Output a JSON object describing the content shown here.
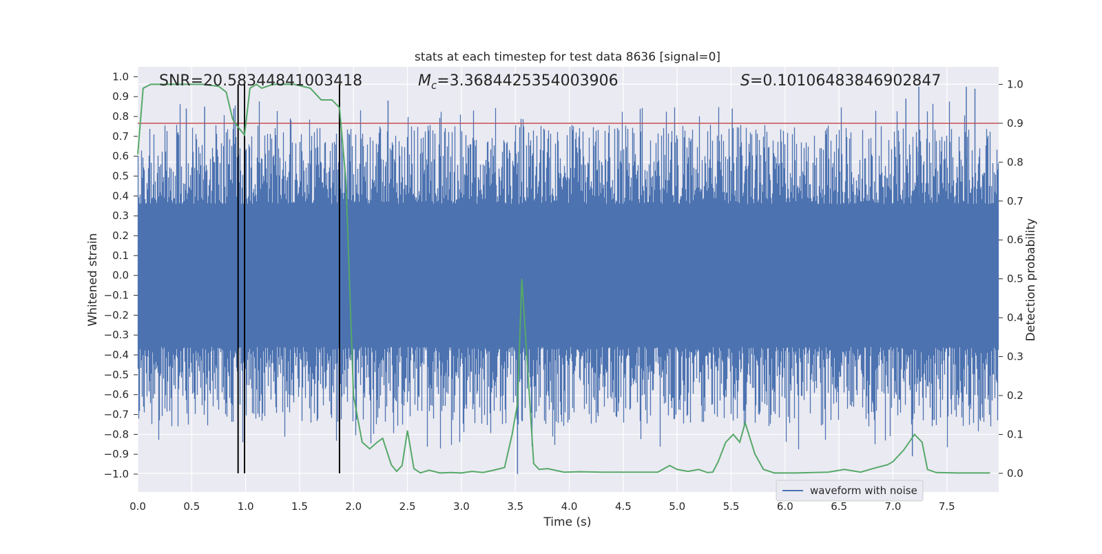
{
  "chart_data": {
    "type": "line",
    "title": "stats at each timestep for test data 8636 [signal=0]",
    "xlabel": "Time (s)",
    "ylabel_left": "Whitened strain",
    "ylabel_right": "Detection probability",
    "xlim": [
      0.0,
      7.98
    ],
    "ylim_left": [
      -1.09,
      1.05
    ],
    "ylim_right": [
      -0.048,
      1.045
    ],
    "x_ticks": [
      "0.0",
      "0.5",
      "1.0",
      "1.5",
      "2.0",
      "2.5",
      "3.0",
      "3.5",
      "4.0",
      "4.5",
      "5.0",
      "5.5",
      "6.0",
      "6.5",
      "7.0",
      "7.5"
    ],
    "x_tick_values": [
      0,
      0.5,
      1,
      1.5,
      2,
      2.5,
      3,
      3.5,
      4,
      4.5,
      5,
      5.5,
      6,
      6.5,
      7,
      7.5
    ],
    "y_left_ticks": [
      "1.0",
      "0.9",
      "0.8",
      "0.7",
      "0.6",
      "0.5",
      "0.4",
      "0.3",
      "0.2",
      "0.1",
      "0.0",
      "−0.1",
      "−0.2",
      "−0.3",
      "−0.4",
      "−0.5",
      "−0.6",
      "−0.7",
      "−0.8",
      "−0.9",
      "−1.0"
    ],
    "y_left_tick_values": [
      1.0,
      0.9,
      0.8,
      0.7,
      0.6,
      0.5,
      0.4,
      0.3,
      0.2,
      0.1,
      0.0,
      -0.1,
      -0.2,
      -0.3,
      -0.4,
      -0.5,
      -0.6,
      -0.7,
      -0.8,
      -0.9,
      -1.0
    ],
    "y_right_ticks": [
      "1.0",
      "0.9",
      "0.8",
      "0.7",
      "0.6",
      "0.5",
      "0.4",
      "0.3",
      "0.2",
      "0.1",
      "0.0"
    ],
    "y_right_tick_values": [
      1.0,
      0.9,
      0.8,
      0.7,
      0.6,
      0.5,
      0.4,
      0.3,
      0.2,
      0.1,
      0.0
    ],
    "annotations": {
      "snr": "SNR=20.58344841003418",
      "mc_symbol": "M",
      "mc_sub": "c",
      "mc_value": "=3.3684425354003906",
      "s_symbol": "S",
      "s_value": "=0.10106483846902847"
    },
    "threshold": {
      "value": 0.9,
      "axis": "right",
      "color": "#c44e52"
    },
    "vertical_lines": [
      0.93,
      0.99,
      1.87
    ],
    "series": [
      {
        "name": "waveform with noise",
        "axis": "left",
        "color": "#4c72b0",
        "kind": "noise-band",
        "envelope_max": 0.97,
        "envelope_min": -1.0,
        "notable_spikes": [
          {
            "x": 0.45,
            "y": 0.84
          },
          {
            "x": 0.62,
            "y": 0.85
          },
          {
            "x": 0.89,
            "y": 0.84
          },
          {
            "x": 2.32,
            "y": 0.88
          },
          {
            "x": 3.52,
            "y": -1.0
          },
          {
            "x": 5.51,
            "y": 0.84
          },
          {
            "x": 7.12,
            "y": 0.89
          },
          {
            "x": 7.18,
            "y": -0.91
          },
          {
            "x": 7.24,
            "y": 0.95
          },
          {
            "x": 7.68,
            "y": 0.95
          },
          {
            "x": 7.76,
            "y": 0.94
          }
        ]
      },
      {
        "name": "detection probability",
        "axis": "right",
        "color": "#55a868",
        "x": [
          0.0,
          0.05,
          0.12,
          0.2,
          0.4,
          0.6,
          0.75,
          0.82,
          0.88,
          0.93,
          0.99,
          1.04,
          1.1,
          1.15,
          1.25,
          1.45,
          1.6,
          1.7,
          1.8,
          1.87,
          1.93,
          2.0,
          2.08,
          2.15,
          2.22,
          2.27,
          2.35,
          2.4,
          2.45,
          2.5,
          2.56,
          2.62,
          2.7,
          2.8,
          2.9,
          3.0,
          3.1,
          3.2,
          3.3,
          3.4,
          3.47,
          3.52,
          3.56,
          3.6,
          3.67,
          3.72,
          3.8,
          3.95,
          4.1,
          4.3,
          4.6,
          4.82,
          4.93,
          5.0,
          5.1,
          5.2,
          5.28,
          5.33,
          5.38,
          5.45,
          5.52,
          5.58,
          5.63,
          5.72,
          5.8,
          5.9,
          6.1,
          6.4,
          6.55,
          6.7,
          6.85,
          6.95,
          7.0,
          7.1,
          7.2,
          7.27,
          7.32,
          7.4,
          7.6,
          7.9
        ],
        "y": [
          0.82,
          0.99,
          1.0,
          1.0,
          1.0,
          1.0,
          0.995,
          0.98,
          0.91,
          0.89,
          0.87,
          0.99,
          1.0,
          0.99,
          1.0,
          1.0,
          0.99,
          0.96,
          0.96,
          0.94,
          0.75,
          0.2,
          0.08,
          0.063,
          0.08,
          0.09,
          0.022,
          0.005,
          0.02,
          0.11,
          0.012,
          0.001,
          0.008,
          0.001,
          0.002,
          0.001,
          0.005,
          0.002,
          0.008,
          0.015,
          0.1,
          0.18,
          0.5,
          0.33,
          0.025,
          0.01,
          0.012,
          0.003,
          0.004,
          0.003,
          0.003,
          0.003,
          0.02,
          0.01,
          0.005,
          0.01,
          0.002,
          0.003,
          0.03,
          0.08,
          0.1,
          0.08,
          0.13,
          0.05,
          0.01,
          0.001,
          0.001,
          0.003,
          0.01,
          0.003,
          0.015,
          0.022,
          0.03,
          0.06,
          0.1,
          0.08,
          0.01,
          0.002,
          0.001,
          0.001
        ]
      }
    ],
    "legend": {
      "label": "waveform with noise",
      "placement": "lower-right"
    },
    "colors": {
      "plot_bg": "#eaeaf2",
      "grid": "#ffffff",
      "text": "#262626",
      "vline": "#000000"
    }
  }
}
